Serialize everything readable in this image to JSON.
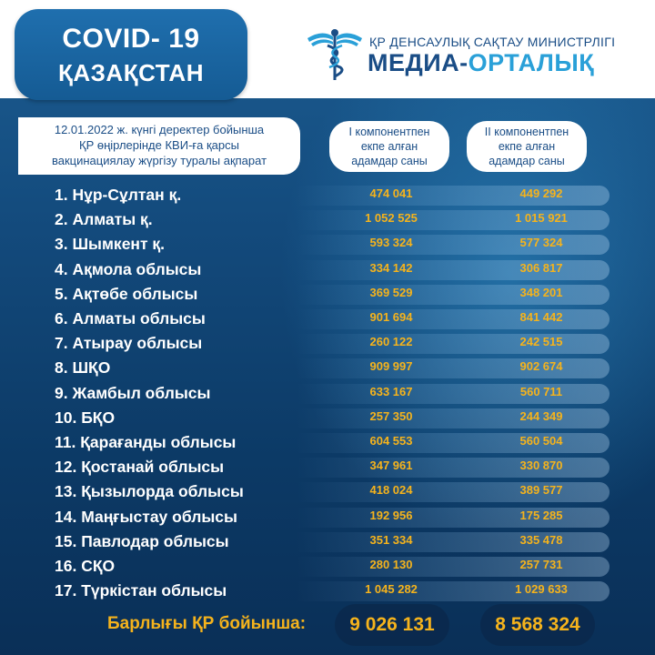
{
  "header": {
    "title": "COVID- 19",
    "country": "ҚАЗАҚСТАН",
    "ministry": "ҚР ДЕНСАУЛЫҚ САҚТАУ МИНИСТРЛІГІ",
    "media_part1": "МЕДИА-",
    "media_part2": "ОРТАЛЫҚ"
  },
  "info": {
    "line1": "12.01.2022 ж. күнгі деректер бойынша",
    "line2": "ҚР өңірлерінде КВИ-ға қарсы",
    "line3": "вакцинациялау жүргізу туралы ақпарат"
  },
  "columns": {
    "first": [
      "I компонентпен",
      "екпе алған",
      "адамдар саны"
    ],
    "second": [
      "II компонентпен",
      "екпе алған",
      "адамдар саны"
    ]
  },
  "rows": [
    {
      "label": "1. Нұр-Сұлтан қ.",
      "v1": "474 041",
      "v2": "449 292"
    },
    {
      "label": "2. Алматы қ.",
      "v1": "1 052 525",
      "v2": "1 015 921"
    },
    {
      "label": "3. Шымкент қ.",
      "v1": "593 324",
      "v2": "577 324"
    },
    {
      "label": "4. Ақмола облысы",
      "v1": "334 142",
      "v2": "306 817"
    },
    {
      "label": "5. Ақтөбе облысы",
      "v1": "369 529",
      "v2": "348 201"
    },
    {
      "label": "6. Алматы облысы",
      "v1": "901 694",
      "v2": "841 442"
    },
    {
      "label": "7. Атырау облысы",
      "v1": "260 122",
      "v2": "242 515"
    },
    {
      "label": "8. ШҚО",
      "v1": "909 997",
      "v2": "902 674"
    },
    {
      "label": "9. Жамбыл облысы",
      "v1": "633 167",
      "v2": "560 711"
    },
    {
      "label": "10. БҚО",
      "v1": "257 350",
      "v2": "244 349"
    },
    {
      "label": "11. Қарағанды облысы",
      "v1": "604 553",
      "v2": "560 504"
    },
    {
      "label": "12. Қостанай облысы",
      "v1": "347 961",
      "v2": "330 870"
    },
    {
      "label": "13. Қызылорда облысы",
      "v1": "418 024",
      "v2": "389 577"
    },
    {
      "label": "14. Маңғыстау облысы",
      "v1": "192 956",
      "v2": "175 285"
    },
    {
      "label": "15. Павлодар облысы",
      "v1": "351 334",
      "v2": "335 478"
    },
    {
      "label": "16. СҚО",
      "v1": "280 130",
      "v2": "257 731"
    },
    {
      "label": "17. Түркістан облысы",
      "v1": "1 045 282",
      "v2": "1 029 633"
    }
  ],
  "totals": {
    "label": "Барлығы ҚР бойынша:",
    "v1": "9 026 131",
    "v2": "8 568 324"
  },
  "colors": {
    "accent": "#f5b31c",
    "brand_blue": "#1a4d86",
    "brand_light": "#2aa0d8"
  },
  "icons": {
    "logo": "caduceus-icon"
  }
}
